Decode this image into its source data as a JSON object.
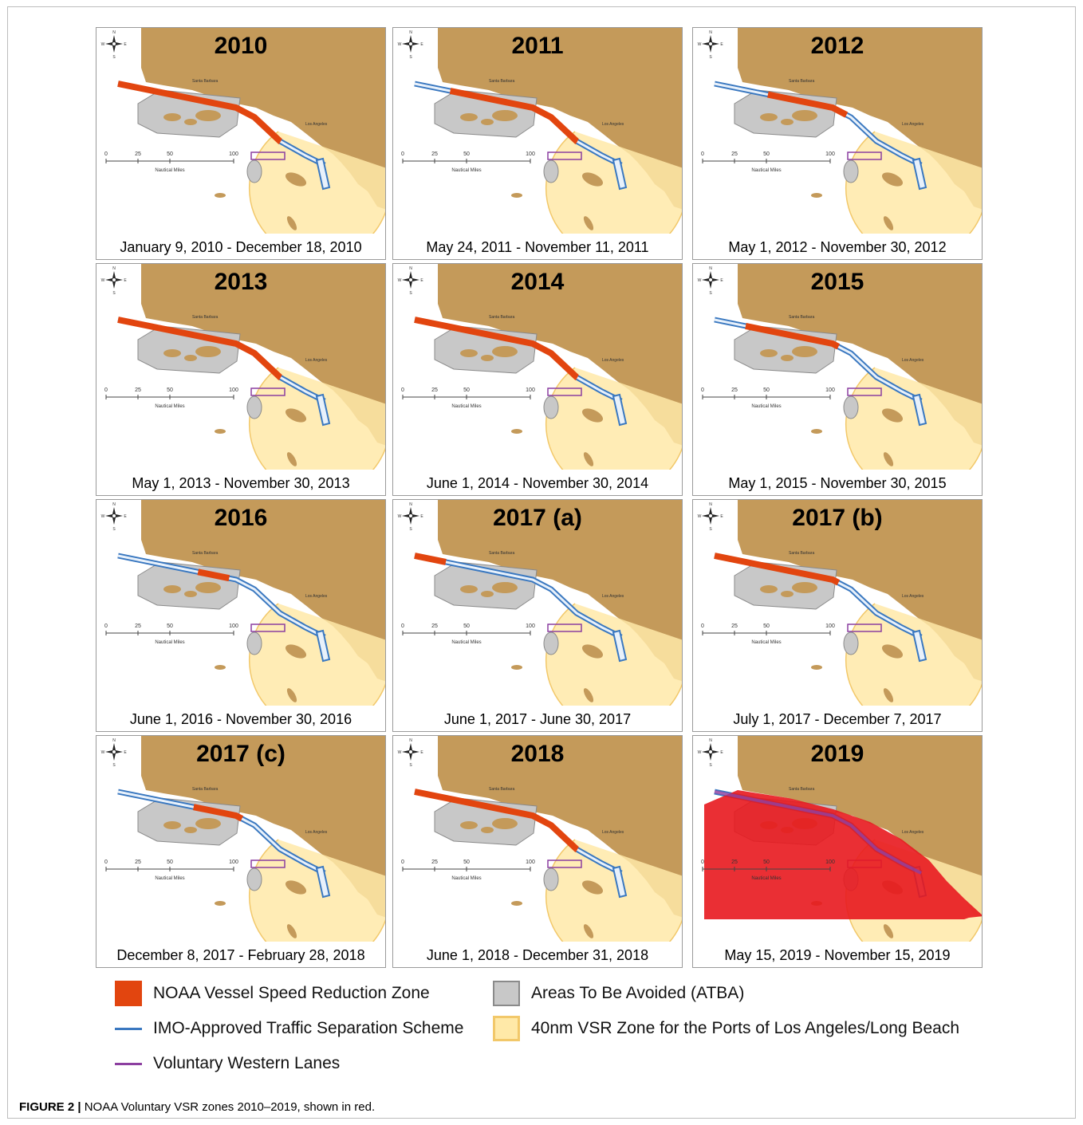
{
  "colors": {
    "land": "#C49A5A",
    "sea": "#FFFFFF",
    "vsr": "#E2450F",
    "tss": "#3A78C0",
    "atba": "#C8C8C8",
    "zone40": "#FFE9A8",
    "lanes": "#8C3FA0",
    "zone2019": "#E8181E"
  },
  "map_labels": {
    "santa_barbara": "Santa Barbara",
    "los_angeles": "Los Angeles",
    "scale_units": "Nautical Miles",
    "scale_ticks": [
      "0",
      "25",
      "50",
      "100"
    ],
    "compass_n": "N",
    "compass_e": "E",
    "compass_w": "W",
    "compass_s": "S"
  },
  "panels": [
    {
      "year": "2010",
      "dates": "January 9, 2010 - December 18, 2010",
      "vsr_from": 0.0,
      "vsr_to": 0.78
    },
    {
      "year": "2011",
      "dates": "May 24, 2011 - November 11, 2011",
      "vsr_from": 0.16,
      "vsr_to": 0.78
    },
    {
      "year": "2012",
      "dates": "May 1, 2012 - November 30, 2012",
      "vsr_from": 0.24,
      "vsr_to": 0.6
    },
    {
      "year": "2013",
      "dates": "May 1, 2013 - November 30, 2013",
      "vsr_from": 0.0,
      "vsr_to": 0.78
    },
    {
      "year": "2014",
      "dates": "June 1, 2014 - November 30, 2014",
      "vsr_from": 0.0,
      "vsr_to": 0.78
    },
    {
      "year": "2015",
      "dates": "May 1, 2015 - November 30, 2015",
      "vsr_from": 0.14,
      "vsr_to": 0.56
    },
    {
      "year": "2016",
      "dates": "June 1, 2016 - November 30, 2016",
      "vsr_from": 0.36,
      "vsr_to": 0.5
    },
    {
      "year": "2017 (a)",
      "dates": "June 1, 2017 - June 30, 2017",
      "vsr_from": 0.0,
      "vsr_to": 0.14
    },
    {
      "year": "2017 (b)",
      "dates": "July 1, 2017 - December 7, 2017",
      "vsr_from": 0.0,
      "vsr_to": 0.56
    },
    {
      "year": "2017 (c)",
      "dates": "December 8, 2017 - February 28, 2018",
      "vsr_from": 0.34,
      "vsr_to": 0.56
    },
    {
      "year": "2018",
      "dates": "June 1, 2018 - December 31, 2018",
      "vsr_from": 0.0,
      "vsr_to": 0.78
    },
    {
      "year": "2019",
      "dates": "May 15, 2019 - November 15, 2019",
      "vsr_from": 0.0,
      "vsr_to": 0.0,
      "full_zone": true
    }
  ],
  "legend": {
    "vsr_zone": "NOAA Vessel Speed Reduction Zone",
    "tss": "IMO-Approved Traffic Separation Scheme",
    "lanes": "Voluntary Western Lanes",
    "atba": "Areas To Be Avoided (ATBA)",
    "zone40": "40nm VSR Zone for the Ports of Los Angeles/Long Beach"
  },
  "caption": {
    "label": "FIGURE 2 |",
    "text": " NOAA Voluntary VSR zones 2010–2019, shown in red."
  }
}
